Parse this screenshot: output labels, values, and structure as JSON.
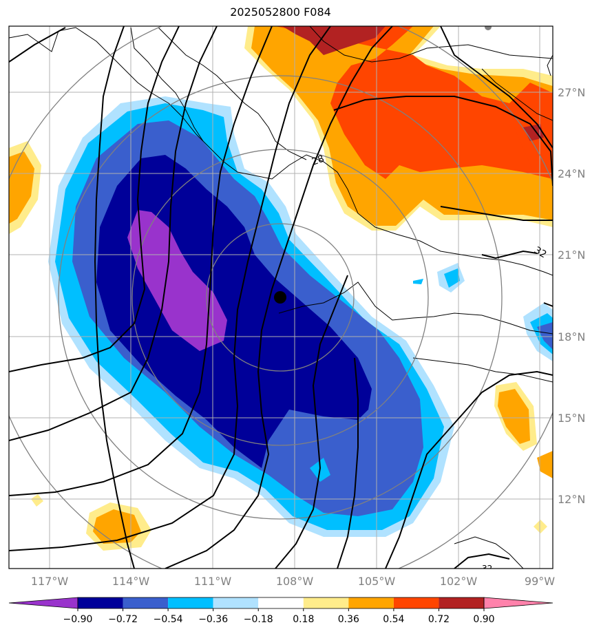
{
  "title": "2025052800 F084",
  "map": {
    "lon_labels": [
      "117°W",
      "114°W",
      "111°W",
      "108°W",
      "105°W",
      "102°W",
      "99°W"
    ],
    "lat_labels": [
      "12°N",
      "15°N",
      "18°N",
      "21°N",
      "24°N",
      "27°N"
    ],
    "contour_labels": [
      "28",
      "32",
      "32"
    ],
    "center_marker": "storm-center"
  },
  "colorbar": {
    "ticks": [
      "−0.90",
      "−0.72",
      "−0.54",
      "−0.36",
      "−0.18",
      "0.18",
      "0.36",
      "0.54",
      "0.72",
      "0.90"
    ],
    "colors": [
      "#9933cc",
      "#000099",
      "#3a5fcd",
      "#00bfff",
      "#b0e2ff",
      "#ffffff",
      "#ffec8b",
      "#ffa500",
      "#ff4500",
      "#b22222",
      "#ff82ab"
    ]
  }
}
